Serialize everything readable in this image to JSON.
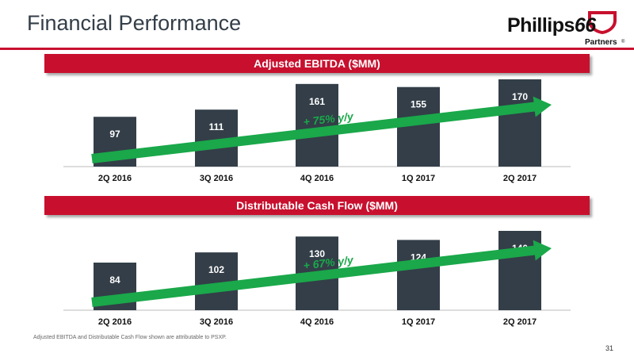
{
  "header": {
    "title": "Financial Performance",
    "logo_text": "Phillips",
    "logo_number": "66",
    "logo_sub": "Partners",
    "logo_tm": "®"
  },
  "colors": {
    "brand_red": "#c8102e",
    "bar": "#333e48",
    "trend": "#1aa84a"
  },
  "chart_data": [
    {
      "type": "bar",
      "title": "Adjusted EBITDA ($MM)",
      "categories": [
        "2Q 2016",
        "3Q 2016",
        "4Q 2016",
        "1Q 2017",
        "2Q 2017"
      ],
      "values": [
        97,
        111,
        161,
        155,
        170
      ],
      "annotation": "+ 75% y/y",
      "legend": "none",
      "grid": false
    },
    {
      "type": "bar",
      "title": "Distributable Cash Flow ($MM)",
      "categories": [
        "2Q 2016",
        "3Q 2016",
        "4Q 2016",
        "1Q 2017",
        "2Q 2017"
      ],
      "values": [
        84,
        102,
        130,
        124,
        140
      ],
      "annotation": "+ 67% y/y",
      "legend": "none",
      "grid": false
    }
  ],
  "footnote": "Adjusted EBITDA and Distributable Cash Flow shown are attributable to PSXP.",
  "page_number": "31"
}
